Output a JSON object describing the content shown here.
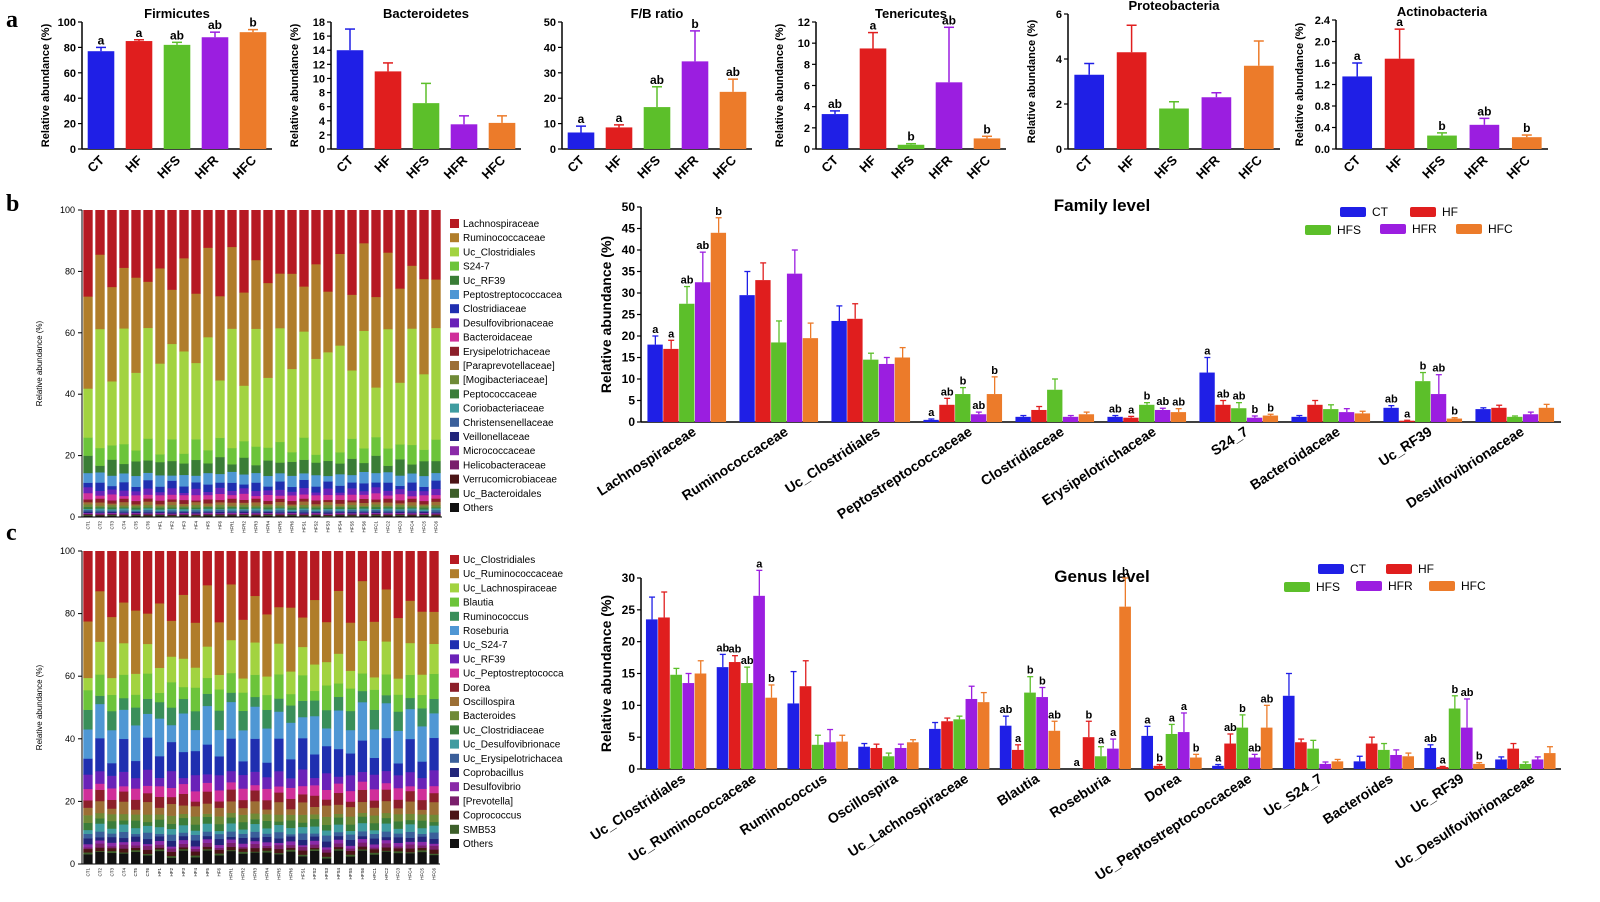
{
  "panel_labels": [
    "a",
    "b",
    "c"
  ],
  "colors": {
    "CT": "#1f1fe6",
    "HF": "#e01e1e",
    "HFS": "#5cbf2a",
    "HFR": "#9b1ee0",
    "HFC": "#ec7b2a"
  },
  "chart_data": [
    {
      "type": "bar",
      "id": "firmicutes",
      "title": "Firmicutes",
      "ylabel": "Relative abundance (%)",
      "categories": [
        "CT",
        "HF",
        "HFS",
        "HFR",
        "HFC"
      ],
      "values": [
        77,
        85,
        82,
        88,
        92
      ],
      "errors": [
        3,
        1,
        2,
        4,
        2
      ],
      "letters": [
        "a",
        "a",
        "ab",
        "ab",
        "b"
      ],
      "ylim": [
        0,
        100
      ],
      "yticks": [
        0,
        20,
        40,
        60,
        80,
        100
      ]
    },
    {
      "type": "bar",
      "id": "bacteroidetes",
      "title": "Bacteroidetes",
      "ylabel": "Relative abundance (%)",
      "categories": [
        "CT",
        "HF",
        "HFS",
        "HFR",
        "HFC"
      ],
      "values": [
        14,
        11,
        6.5,
        3.5,
        3.7
      ],
      "errors": [
        3,
        1.2,
        2.8,
        1.2,
        1.0
      ],
      "letters": [
        "",
        "",
        "",
        "",
        ""
      ],
      "ylim": [
        0,
        18
      ],
      "yticks": [
        0,
        2,
        4,
        6,
        8,
        10,
        12,
        14,
        16,
        18
      ]
    },
    {
      "type": "bar",
      "id": "fb_ratio",
      "title": "F/B ratio",
      "ylabel": "",
      "categories": [
        "CT",
        "HF",
        "HFS",
        "HFR",
        "HFC"
      ],
      "values": [
        6.5,
        8.5,
        16.5,
        34.5,
        22.5
      ],
      "errors": [
        2.5,
        1,
        8,
        12,
        5
      ],
      "letters": [
        "a",
        "a",
        "ab",
        "b",
        "ab"
      ],
      "ylim": [
        0,
        50
      ],
      "yticks": [
        0,
        10,
        20,
        30,
        40,
        50
      ]
    },
    {
      "type": "bar",
      "id": "tenericutes",
      "title": "Tenericutes",
      "ylabel": "Relative abundance (%)",
      "categories": [
        "CT",
        "HF",
        "HFS",
        "HFR",
        "HFC"
      ],
      "values": [
        3.3,
        9.5,
        0.4,
        6.3,
        1.0
      ],
      "errors": [
        0.3,
        1.5,
        0.1,
        5.2,
        0.2
      ],
      "letters": [
        "ab",
        "a",
        "b",
        "ab",
        "b"
      ],
      "ylim": [
        0,
        12
      ],
      "yticks": [
        0,
        2,
        4,
        6,
        8,
        10,
        12
      ]
    },
    {
      "type": "bar",
      "id": "proteobacteria",
      "title": "Proteobacteria",
      "ylabel": "Relative abundance (%)",
      "categories": [
        "CT",
        "HF",
        "HFS",
        "HFR",
        "HFC"
      ],
      "values": [
        3.3,
        4.3,
        1.8,
        2.3,
        3.7
      ],
      "errors": [
        0.5,
        1.2,
        0.3,
        0.2,
        1.1
      ],
      "letters": [
        "",
        "",
        "",
        "",
        ""
      ],
      "ylim": [
        0,
        6
      ],
      "yticks": [
        0,
        2,
        4,
        6
      ]
    },
    {
      "type": "bar",
      "id": "actinobacteria",
      "title": "Actinobacteria",
      "ylabel": "Relative abundance (%)",
      "categories": [
        "CT",
        "HF",
        "HFS",
        "HFR",
        "HFC"
      ],
      "values": [
        1.35,
        1.68,
        0.25,
        0.45,
        0.22
      ],
      "errors": [
        0.25,
        0.55,
        0.05,
        0.12,
        0.04
      ],
      "letters": [
        "a",
        "a",
        "b",
        "ab",
        "b"
      ],
      "ylim": [
        0,
        2.4
      ],
      "yticks": [
        0,
        0.4,
        0.8,
        1.2,
        1.6,
        2.0,
        2.4
      ]
    },
    {
      "type": "stacked-bar",
      "id": "family_stack",
      "ylabel": "Relative abundance (%)",
      "ylim": [
        0,
        100
      ],
      "yticks": [
        0,
        20,
        40,
        60,
        80,
        100
      ],
      "samples": [
        "CT1",
        "CT2",
        "CT3",
        "CT4",
        "CT5",
        "CT6",
        "HF1",
        "HF2",
        "HF3",
        "HF4",
        "HF5",
        "HF6",
        "HFR1",
        "HFR2",
        "HFR3",
        "HFR4",
        "HFR5",
        "HFR6",
        "HFS1",
        "HFS2",
        "HFS3",
        "HFS4",
        "HFS5",
        "HFS6",
        "HFC1",
        "HFC2",
        "HFC3",
        "HFC4",
        "HFC5",
        "HFC6"
      ],
      "legend": [
        "Lachnospiraceae",
        "Ruminococcaceae",
        "Uc_Clostridiales",
        "S24-7",
        "Uc_RF39",
        "Peptostreptococcacea",
        "Clostridiaceae",
        "Desulfovibrionaceae",
        "Bacteroidaceae",
        "Erysipelotrichaceae",
        "[Paraprevotellaceae]",
        "[Mogibacteriaceae]",
        "Peptococcaceae",
        "Coriobacteriaceae",
        "Christensenellaceae",
        "Veillonellaceae",
        "Micrococcaceae",
        "Helicobacteraceae",
        "Verrucomicrobiaceae",
        "Uc_Bacteroidales",
        "Others"
      ],
      "colors": [
        "#b61a22",
        "#b07d2a",
        "#a2d340",
        "#6cc43a",
        "#3a7d36",
        "#4f97d4",
        "#1f2fb0",
        "#6a22b8",
        "#d02f9a",
        "#8c1f2a",
        "#9c6f35",
        "#6f8a37",
        "#3b7d3a",
        "#3f9ca0",
        "#3a5f9a",
        "#22257a",
        "#8a2aa8",
        "#7a1f6c",
        "#4b1416",
        "#3d5f2a",
        "#111111"
      ],
      "base_values": [
        20.0,
        25.0,
        29.0,
        5.0,
        4.0,
        3.0,
        2.0,
        1.5,
        1.5,
        1.0,
        0.8,
        0.6,
        0.5,
        0.5,
        0.5,
        0.3,
        0.3,
        0.2,
        0.2,
        0.2,
        0.4
      ]
    },
    {
      "type": "stacked-bar",
      "id": "genus_stack",
      "ylabel": "Relative abundance (%)",
      "ylim": [
        0,
        100
      ],
      "yticks": [
        0,
        20,
        40,
        60,
        80,
        100
      ],
      "samples": [
        "CT1",
        "CT2",
        "CT3",
        "CT4",
        "CT5",
        "CT6",
        "HF1",
        "HF2",
        "HF3",
        "HF4",
        "HF5",
        "HF6",
        "HFR1",
        "HFR2",
        "HFR3",
        "HFR4",
        "HFR5",
        "HFR6",
        "HFS1",
        "HFS2",
        "HFS3",
        "HFS4",
        "HFS5",
        "HFS6",
        "HFC1",
        "HFC2",
        "HFC3",
        "HFC4",
        "HFC5",
        "HFC6"
      ],
      "legend": [
        "Uc_Clostridiales",
        "Uc_Ruminococcaceae",
        "Uc_Lachnospiraceae",
        "Blautia",
        "Ruminococcus",
        "Roseburia",
        "Uc_S24-7",
        "Uc_RF39",
        "Uc_Peptostreptococca",
        "Dorea",
        "Oscillospira",
        "Bacteroides",
        "Uc_Clostridiaceae",
        "Uc_Desulfovibrionace",
        "Uc_Erysipelotrichacea",
        "Coprobacillus",
        "Desulfovibrio",
        "[Prevotella]",
        "Coprococcus",
        "SMB53",
        "Others"
      ],
      "colors": [
        "#b61a22",
        "#b07d2a",
        "#a2d340",
        "#6cc43a",
        "#3a8f5a",
        "#4f97d4",
        "#1f2fb0",
        "#6a22b8",
        "#d02f9a",
        "#8c1f2a",
        "#9c6f35",
        "#6f8a37",
        "#3b7d3a",
        "#3f9ca0",
        "#3a5f9a",
        "#22257a",
        "#8a2aa8",
        "#7a1f6c",
        "#4b1416",
        "#3d5f2a",
        "#111111"
      ],
      "base_values": [
        18.0,
        17.0,
        8.0,
        6.0,
        5.0,
        10.0,
        8.0,
        4.0,
        3.0,
        3.0,
        3.0,
        2.0,
        2.0,
        2.0,
        1.5,
        1.5,
        1.0,
        1.0,
        1.0,
        0.5,
        3.5
      ]
    },
    {
      "type": "bar",
      "id": "family_level",
      "title": "Family level",
      "ylabel": "Relative abundance (%)",
      "groups": [
        "CT",
        "HF",
        "HFS",
        "HFR",
        "HFC"
      ],
      "categories": [
        "Lachnospiraceae",
        "Ruminococcaceae",
        "Uc_Clostridiales",
        "Peptostreptococcaceae",
        "Clostridiaceae",
        "Erysipelotrichaceae",
        "S24_7",
        "Bacteroidaceae",
        "Uc_RF39",
        "Desulfovibrionaceae"
      ],
      "series": [
        {
          "name": "CT",
          "values": [
            18,
            29.5,
            23.5,
            0.5,
            1.2,
            1.2,
            11.5,
            1.2,
            3.3,
            3.0
          ],
          "errors": [
            2,
            5.5,
            3.5,
            0.2,
            0.3,
            0.3,
            3.5,
            0.3,
            0.5,
            0.3
          ],
          "letters": [
            "a",
            "",
            "",
            "a",
            "",
            "ab",
            "a",
            "",
            "ab",
            ""
          ]
        },
        {
          "name": "HF",
          "values": [
            17,
            33,
            24,
            4,
            2.8,
            1.0,
            4,
            4,
            0.3,
            3.3
          ],
          "errors": [
            2,
            4,
            3.5,
            1.5,
            0.8,
            0.3,
            1,
            1,
            0.1,
            0.6
          ],
          "letters": [
            "a",
            "",
            "",
            "ab",
            "",
            "a",
            "ab",
            "",
            "a",
            ""
          ]
        },
        {
          "name": "HFS",
          "values": [
            27.5,
            18.5,
            14.5,
            6.5,
            7.5,
            4,
            3.2,
            3,
            9.5,
            1.2
          ],
          "errors": [
            4,
            5,
            1.5,
            1.5,
            2.5,
            0.5,
            1.3,
            1,
            2,
            0.2
          ],
          "letters": [
            "ab",
            "",
            "",
            "b",
            "",
            "b",
            "ab",
            "",
            "b",
            ""
          ]
        },
        {
          "name": "HFR",
          "values": [
            32.5,
            34.5,
            13.5,
            1.8,
            1.2,
            2.8,
            1.0,
            2.3,
            6.5,
            1.8
          ],
          "errors": [
            7,
            5.5,
            1.5,
            0.5,
            0.3,
            0.4,
            0.4,
            0.8,
            4.5,
            0.5
          ],
          "letters": [
            "ab",
            "",
            "",
            "ab",
            "",
            "ab",
            "b",
            "",
            "ab",
            ""
          ]
        },
        {
          "name": "HFC",
          "values": [
            44,
            19.5,
            15,
            6.5,
            1.8,
            2.3,
            1.5,
            2.0,
            0.8,
            3.3
          ],
          "errors": [
            3.5,
            3.5,
            2.3,
            4,
            0.5,
            0.8,
            0.3,
            0.5,
            0.2,
            0.8
          ],
          "letters": [
            "b",
            "",
            "",
            "b",
            "",
            "ab",
            "b",
            "",
            "b",
            ""
          ]
        }
      ],
      "ylim": [
        0,
        50
      ],
      "yticks": [
        0,
        5,
        10,
        15,
        20,
        25,
        30,
        35,
        40,
        45,
        50
      ]
    },
    {
      "type": "bar",
      "id": "genus_level",
      "title": "Genus level",
      "ylabel": "Relative abundance (%)",
      "groups": [
        "CT",
        "HF",
        "HFS",
        "HFR",
        "HFC"
      ],
      "categories": [
        "Uc_Clostridiales",
        "Uc_Ruminococcaceae",
        "Ruminococcus",
        "Oscillospira",
        "Uc_Lachnospiraceae",
        "Blautia",
        "Roseburia",
        "Dorea",
        "Uc_Peptostreptococcaceae",
        "Uc_S24_7",
        "Bacteroides",
        "Uc_RF39",
        "Uc_Desulfovibrionaceae"
      ],
      "series": [
        {
          "name": "CT",
          "values": [
            23.5,
            16,
            10.3,
            3.5,
            6.3,
            6.8,
            0,
            5.2,
            0.5,
            11.5,
            1.2,
            3.3,
            1.5
          ],
          "errors": [
            3.5,
            2,
            5,
            0.5,
            1,
            1.5,
            0,
            1.5,
            0.2,
            3.5,
            0.8,
            0.5,
            0.4
          ],
          "letters": [
            "",
            "ab",
            "",
            "",
            "",
            "ab",
            "a",
            "a",
            "a",
            "",
            "",
            "ab",
            ""
          ]
        },
        {
          "name": "HF",
          "values": [
            23.8,
            16.8,
            13,
            3.3,
            7.5,
            3,
            5,
            0.5,
            4,
            4.2,
            4,
            0.3,
            3.2
          ],
          "errors": [
            4,
            1,
            4,
            0.6,
            0.5,
            0.8,
            2.5,
            0.2,
            1.5,
            0.5,
            1,
            0.1,
            0.8
          ],
          "letters": [
            "",
            "ab",
            "",
            "",
            "",
            "a",
            "b",
            "b",
            "ab",
            "",
            "",
            "a",
            ""
          ]
        },
        {
          "name": "HFS",
          "values": [
            14.8,
            13.5,
            3.8,
            2,
            7.8,
            12,
            2,
            5.5,
            6.5,
            3.2,
            3,
            9.5,
            0.8
          ],
          "errors": [
            1,
            2.5,
            1.5,
            0.5,
            0.5,
            2.5,
            1.5,
            1.5,
            2,
            1.3,
            1,
            2,
            0.3
          ],
          "letters": [
            "",
            "ab",
            "",
            "",
            "",
            "b",
            "a",
            "a",
            "b",
            "",
            "",
            "b",
            ""
          ]
        },
        {
          "name": "HFR",
          "values": [
            13.5,
            27.2,
            4.2,
            3.3,
            11,
            11.3,
            3.2,
            5.8,
            1.8,
            0.8,
            2.2,
            6.5,
            1.5
          ],
          "errors": [
            1.5,
            4,
            2,
            0.6,
            2,
            1.5,
            1.5,
            3,
            0.5,
            0.3,
            0.8,
            4.5,
            0.4
          ],
          "letters": [
            "",
            "a",
            "",
            "",
            "",
            "b",
            "a",
            "a",
            "ab",
            "",
            "",
            "ab",
            ""
          ]
        },
        {
          "name": "HFC",
          "values": [
            15,
            11.2,
            4.3,
            4.2,
            10.5,
            6,
            25.5,
            1.8,
            6.5,
            1.2,
            2,
            0.8,
            2.5
          ],
          "errors": [
            2,
            2,
            1,
            0.4,
            1.5,
            1.5,
            4.5,
            0.5,
            3.5,
            0.3,
            0.5,
            0.2,
            1
          ],
          "letters": [
            "",
            "b",
            "",
            "",
            "",
            "ab",
            "b",
            "b",
            "ab",
            "",
            "",
            "b",
            ""
          ]
        }
      ],
      "ylim": [
        0,
        30
      ],
      "yticks": [
        0,
        5,
        10,
        15,
        20,
        25,
        30
      ]
    }
  ]
}
